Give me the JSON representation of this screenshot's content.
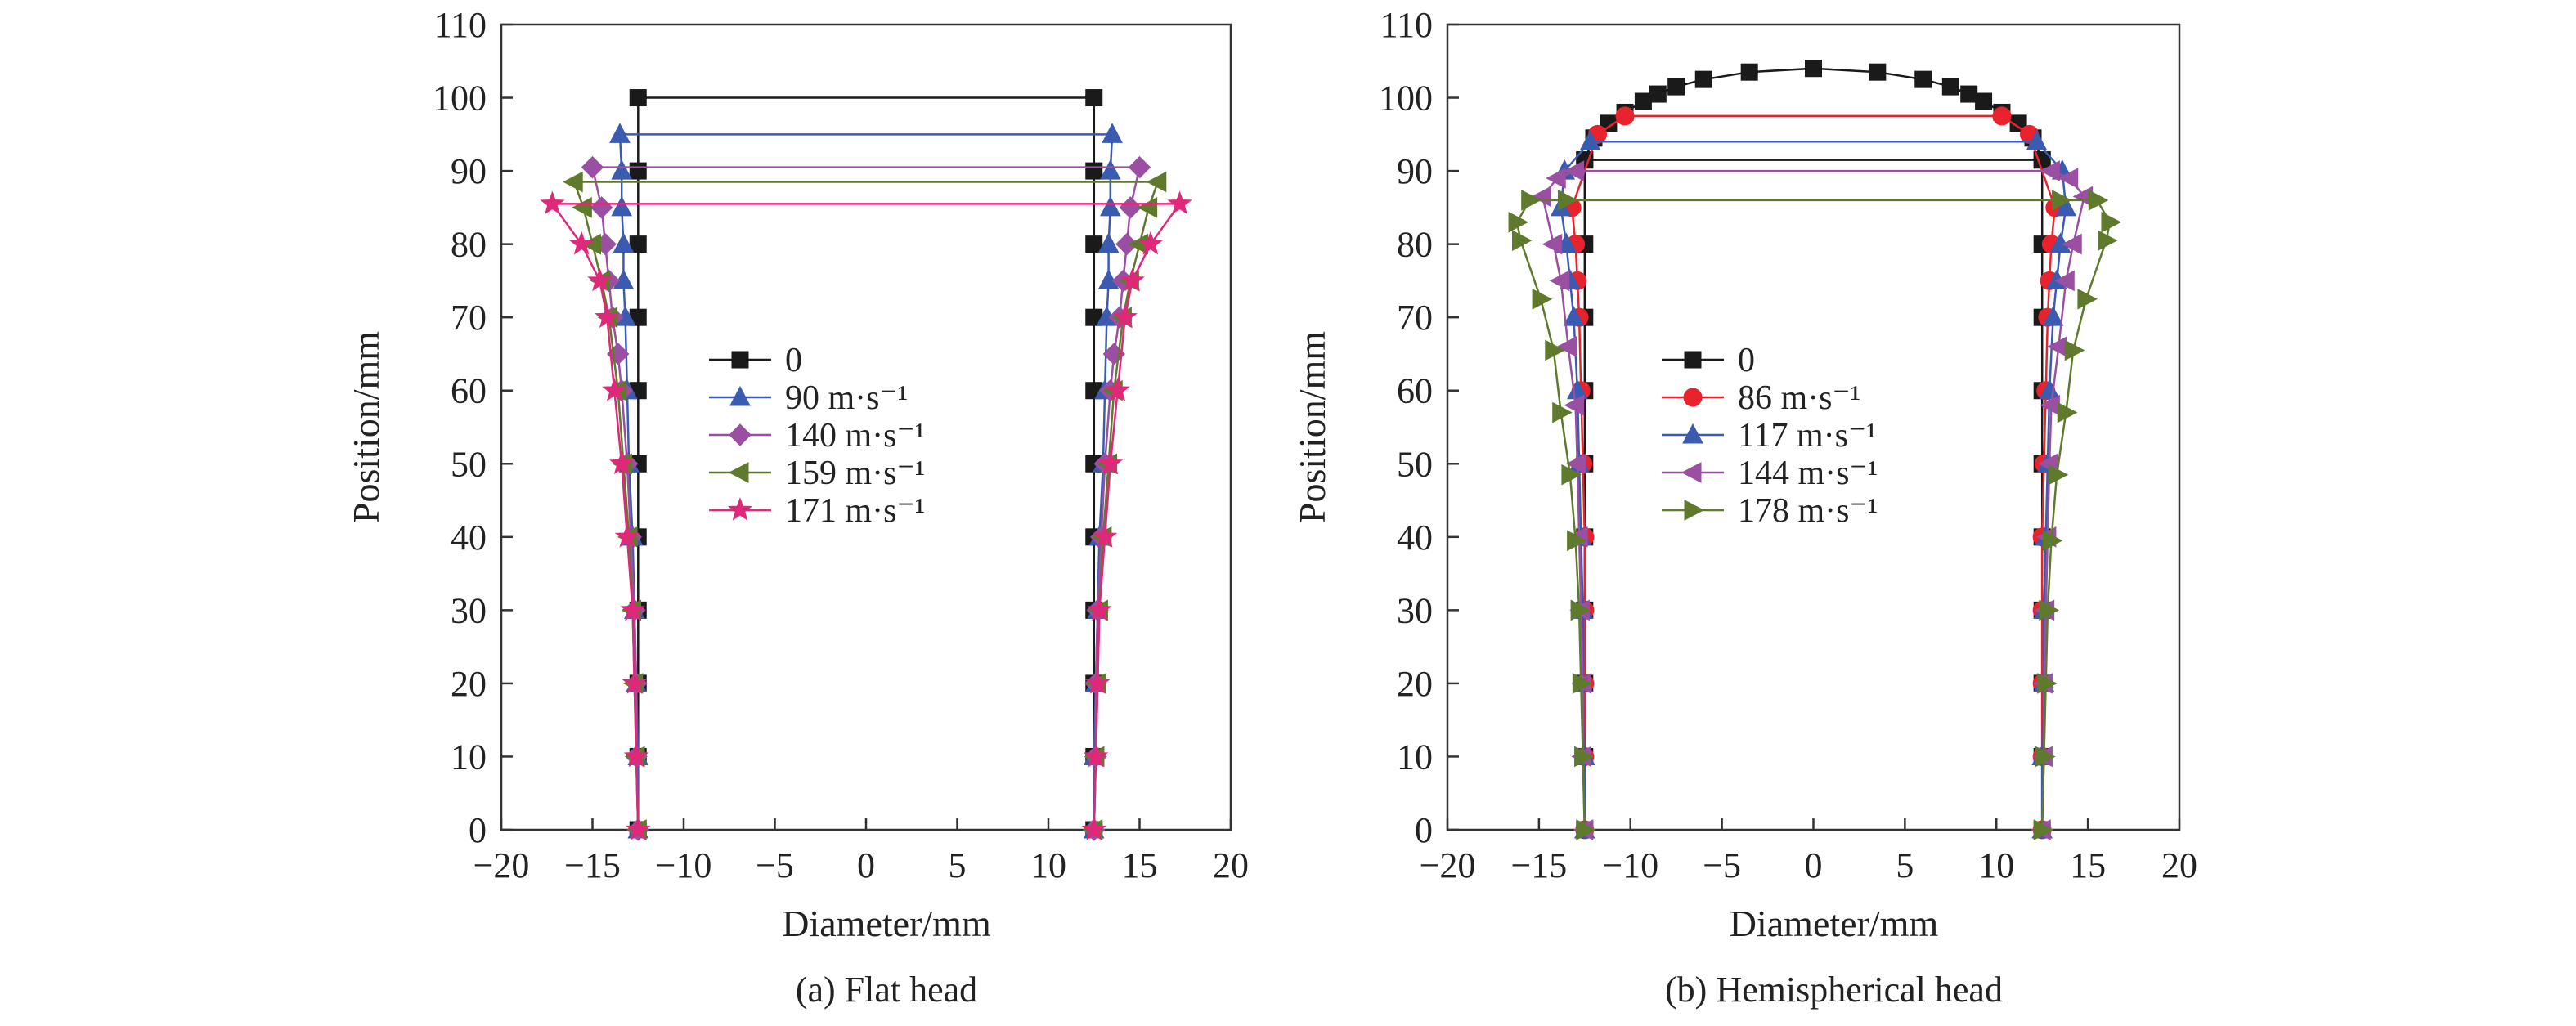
{
  "chart_data": [
    {
      "type": "line",
      "caption": "(a) Flat head",
      "xlabel": "Diameter/mm",
      "ylabel": "Position/mm",
      "xlim": [
        -20,
        20
      ],
      "ylim": [
        0,
        110
      ],
      "xticks": [
        -20,
        -15,
        -10,
        -5,
        0,
        5,
        10,
        15,
        20
      ],
      "yticks": [
        0,
        10,
        20,
        30,
        40,
        50,
        60,
        70,
        80,
        90,
        100,
        110
      ],
      "grid": false,
      "legend_position": "center",
      "series": [
        {
          "name": "0",
          "color": "#1a1a1a",
          "marker": "square",
          "top": [
            [
              -12.5,
              100
            ],
            [
              12.5,
              100
            ]
          ],
          "right": [
            [
              12.5,
              0
            ],
            [
              12.5,
              10
            ],
            [
              12.5,
              20
            ],
            [
              12.5,
              30
            ],
            [
              12.5,
              40
            ],
            [
              12.5,
              50
            ],
            [
              12.5,
              60
            ],
            [
              12.5,
              70
            ],
            [
              12.5,
              80
            ],
            [
              12.5,
              90
            ],
            [
              12.5,
              100
            ]
          ]
        },
        {
          "name": "90 m·s⁻¹",
          "color": "#3a5bb0",
          "marker": "triangle-up",
          "top": [
            [
              -13.5,
              95
            ],
            [
              13.5,
              95
            ]
          ],
          "right": [
            [
              12.5,
              0
            ],
            [
              12.5,
              10
            ],
            [
              12.6,
              20
            ],
            [
              12.7,
              30
            ],
            [
              12.8,
              40
            ],
            [
              13.0,
              50
            ],
            [
              13.1,
              60
            ],
            [
              13.2,
              70
            ],
            [
              13.3,
              75
            ],
            [
              13.3,
              80
            ],
            [
              13.4,
              85
            ],
            [
              13.4,
              90
            ],
            [
              13.5,
              95
            ]
          ]
        },
        {
          "name": "140 m·s⁻¹",
          "color": "#9a4fa3",
          "marker": "diamond",
          "top": [
            [
              -15.0,
              90.5
            ],
            [
              15.0,
              90.5
            ]
          ],
          "right": [
            [
              12.5,
              0
            ],
            [
              12.6,
              10
            ],
            [
              12.6,
              20
            ],
            [
              12.7,
              30
            ],
            [
              12.9,
              40
            ],
            [
              13.1,
              50
            ],
            [
              13.4,
              60
            ],
            [
              13.6,
              65
            ],
            [
              13.9,
              70
            ],
            [
              14.1,
              75
            ],
            [
              14.3,
              80
            ],
            [
              14.5,
              85
            ],
            [
              15.0,
              90.5
            ]
          ]
        },
        {
          "name": "159 m·s⁻¹",
          "color": "#5f7a2d",
          "marker": "triangle-left",
          "top": [
            [
              -16.0,
              88.5
            ],
            [
              16.0,
              88.5
            ]
          ],
          "right": [
            [
              12.5,
              0
            ],
            [
              12.6,
              10
            ],
            [
              12.7,
              20
            ],
            [
              12.8,
              30
            ],
            [
              13.0,
              40
            ],
            [
              13.3,
              50
            ],
            [
              13.6,
              60
            ],
            [
              14.1,
              70
            ],
            [
              14.5,
              75
            ],
            [
              15.0,
              80
            ],
            [
              15.5,
              85
            ],
            [
              16.0,
              88.5
            ]
          ]
        },
        {
          "name": "171 m·s⁻¹",
          "color": "#e0287a",
          "marker": "star",
          "top": [
            [
              -17.2,
              85.5
            ],
            [
              17.2,
              85.5
            ]
          ],
          "right": [
            [
              12.5,
              0
            ],
            [
              12.6,
              10
            ],
            [
              12.7,
              20
            ],
            [
              12.8,
              30
            ],
            [
              13.1,
              40
            ],
            [
              13.4,
              50
            ],
            [
              13.8,
              60
            ],
            [
              14.2,
              70
            ],
            [
              14.6,
              75
            ],
            [
              15.6,
              80
            ],
            [
              17.2,
              85.5
            ]
          ]
        }
      ]
    },
    {
      "type": "line",
      "caption": "(b) Hemispherical head",
      "xlabel": "Diameter/mm",
      "ylabel": "Position/mm",
      "xlim": [
        -20,
        20
      ],
      "ylim": [
        0,
        110
      ],
      "xticks": [
        -20,
        -15,
        -10,
        -5,
        0,
        5,
        10,
        15,
        20
      ],
      "yticks": [
        0,
        10,
        20,
        30,
        40,
        50,
        60,
        70,
        80,
        90,
        100,
        110
      ],
      "grid": false,
      "legend_position": "center",
      "series": [
        {
          "name": "0",
          "color": "#1a1a1a",
          "marker": "square",
          "top": [
            [
              -12.5,
              91.5
            ],
            [
              12.5,
              91.5
            ]
          ],
          "dome": [
            [
              -12.5,
              91.5
            ],
            [
              -12.0,
              94.5
            ],
            [
              -11.2,
              96.5
            ],
            [
              -10.3,
              98.0
            ],
            [
              -9.3,
              99.5
            ],
            [
              -8.5,
              100.5
            ],
            [
              -7.5,
              101.5
            ],
            [
              -6.0,
              102.5
            ],
            [
              -3.5,
              103.5
            ],
            [
              0,
              104
            ],
            [
              3.5,
              103.5
            ],
            [
              6.0,
              102.5
            ],
            [
              7.5,
              101.5
            ],
            [
              8.5,
              100.5
            ],
            [
              9.3,
              99.5
            ],
            [
              10.3,
              98.0
            ],
            [
              11.2,
              96.5
            ],
            [
              12.0,
              94.5
            ],
            [
              12.5,
              91.5
            ]
          ],
          "right": [
            [
              12.5,
              0
            ],
            [
              12.5,
              10
            ],
            [
              12.5,
              20
            ],
            [
              12.5,
              30
            ],
            [
              12.5,
              40
            ],
            [
              12.5,
              50
            ],
            [
              12.5,
              60
            ],
            [
              12.5,
              70
            ],
            [
              12.5,
              80
            ],
            [
              12.5,
              91.5
            ]
          ]
        },
        {
          "name": "86 m·s⁻¹",
          "color": "#e8232d",
          "marker": "circle",
          "top": [
            [
              -10.3,
              97.5
            ],
            [
              10.3,
              97.5
            ]
          ],
          "right": [
            [
              12.5,
              0
            ],
            [
              12.5,
              10
            ],
            [
              12.5,
              20
            ],
            [
              12.5,
              30
            ],
            [
              12.5,
              40
            ],
            [
              12.6,
              50
            ],
            [
              12.7,
              60
            ],
            [
              12.8,
              70
            ],
            [
              12.9,
              75
            ],
            [
              13.0,
              80
            ],
            [
              13.2,
              85
            ],
            [
              11.8,
              95
            ],
            [
              10.3,
              97.5
            ]
          ]
        },
        {
          "name": "117 m·s⁻¹",
          "color": "#3a5bb0",
          "marker": "triangle-up",
          "top": [
            [
              -12.2,
              94
            ],
            [
              12.2,
              94
            ]
          ],
          "right": [
            [
              12.5,
              0
            ],
            [
              12.5,
              10
            ],
            [
              12.6,
              20
            ],
            [
              12.6,
              30
            ],
            [
              12.7,
              40
            ],
            [
              12.8,
              50
            ],
            [
              12.9,
              60
            ],
            [
              13.1,
              70
            ],
            [
              13.3,
              75
            ],
            [
              13.5,
              80
            ],
            [
              13.8,
              85
            ],
            [
              13.6,
              90
            ],
            [
              12.2,
              94
            ]
          ]
        },
        {
          "name": "144 m·s⁻¹",
          "color": "#9a4fa3",
          "marker": "triangle-left",
          "top": [
            [
              -13.0,
              90
            ],
            [
              13.0,
              90
            ]
          ],
          "right": [
            [
              12.5,
              0
            ],
            [
              12.6,
              10
            ],
            [
              12.6,
              20
            ],
            [
              12.7,
              30
            ],
            [
              12.8,
              40
            ],
            [
              12.9,
              50
            ],
            [
              13.0,
              58
            ],
            [
              13.4,
              66
            ],
            [
              13.8,
              75
            ],
            [
              14.2,
              80
            ],
            [
              14.8,
              86.5
            ],
            [
              14.0,
              89
            ],
            [
              13.0,
              90
            ]
          ]
        },
        {
          "name": "178 m·s⁻¹",
          "color": "#5f7a2d",
          "marker": "triangle-right",
          "top": [
            [
              -13.5,
              86
            ],
            [
              13.5,
              86
            ]
          ],
          "right": [
            [
              12.5,
              0
            ],
            [
              12.6,
              10
            ],
            [
              12.7,
              20
            ],
            [
              12.8,
              30
            ],
            [
              13.0,
              39.5
            ],
            [
              13.3,
              48.5
            ],
            [
              13.8,
              57
            ],
            [
              14.2,
              65.5
            ],
            [
              14.9,
              72.5
            ],
            [
              16.0,
              80.5
            ],
            [
              16.2,
              83
            ],
            [
              15.5,
              86
            ],
            [
              13.5,
              86
            ]
          ]
        }
      ]
    }
  ]
}
